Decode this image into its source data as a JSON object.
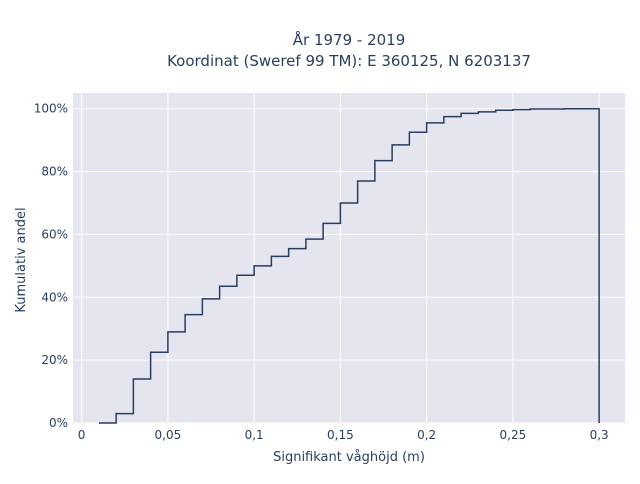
{
  "chart_data": {
    "type": "line",
    "step": true,
    "title_lines": [
      "År 1979 - 2019",
      "Koordinat (Sweref 99 TM): E 360125, N 6203137"
    ],
    "xlabel": "Signifikant våghöjd (m)",
    "ylabel": "Kumulativ andel",
    "xlim": [
      -0.005,
      0.315
    ],
    "ylim": [
      0,
      1.05
    ],
    "x_ticks": [
      0,
      0.05,
      0.1,
      0.15,
      0.2,
      0.25,
      0.3
    ],
    "x_tick_labels": [
      "0",
      "0,05",
      "0,1",
      "0,15",
      "0,2",
      "0,25",
      "0,3"
    ],
    "y_ticks": [
      0,
      0.2,
      0.4,
      0.6,
      0.8,
      1.0
    ],
    "y_tick_labels": [
      "0%",
      "20%",
      "40%",
      "60%",
      "80%",
      "100%"
    ],
    "grid": true,
    "legend": "none",
    "series": [
      {
        "color": "#2a3f5f",
        "edges": [
          0.01,
          0.02,
          0.03,
          0.04,
          0.05,
          0.06,
          0.07,
          0.08,
          0.09,
          0.1,
          0.11,
          0.12,
          0.13,
          0.14,
          0.15,
          0.16,
          0.17,
          0.18,
          0.19,
          0.2,
          0.21,
          0.22,
          0.23,
          0.24,
          0.25,
          0.26,
          0.27,
          0.28,
          0.29,
          0.3
        ],
        "values": [
          0.0,
          0.03,
          0.14,
          0.225,
          0.29,
          0.345,
          0.395,
          0.435,
          0.47,
          0.5,
          0.53,
          0.555,
          0.585,
          0.635,
          0.7,
          0.77,
          0.835,
          0.885,
          0.925,
          0.955,
          0.975,
          0.985,
          0.99,
          0.995,
          0.997,
          0.999,
          0.999,
          1.0,
          1.0
        ]
      }
    ]
  }
}
